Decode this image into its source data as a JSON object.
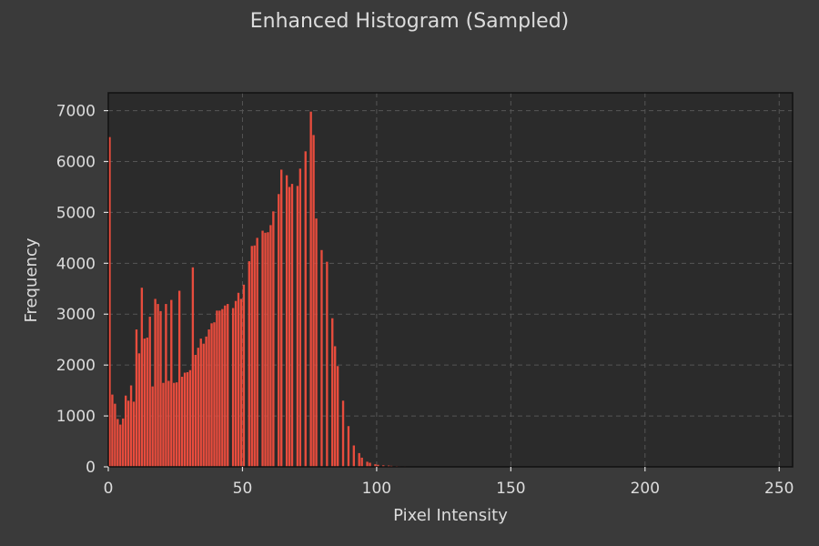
{
  "chart_data": {
    "type": "bar",
    "title": "Enhanced Histogram (Sampled)",
    "xlabel": "Pixel Intensity",
    "ylabel": "Frequency",
    "xlim": [
      0,
      255
    ],
    "ylim": [
      0,
      7350
    ],
    "xticks": [
      0,
      50,
      100,
      150,
      200,
      250
    ],
    "yticks": [
      0,
      1000,
      2000,
      3000,
      4000,
      5000,
      6000,
      7000
    ],
    "grid": true,
    "colors": {
      "background": "#3a3a3a",
      "plot_background": "#2b2b2b",
      "bar": "#e84c3d",
      "text": "#dcdcdc",
      "grid": "#555555"
    },
    "x": [
      0,
      1,
      2,
      3,
      4,
      5,
      6,
      7,
      8,
      9,
      10,
      11,
      12,
      13,
      14,
      15,
      16,
      17,
      18,
      19,
      20,
      21,
      22,
      23,
      24,
      25,
      26,
      27,
      28,
      29,
      30,
      31,
      32,
      33,
      34,
      35,
      36,
      37,
      38,
      39,
      40,
      41,
      42,
      43,
      44,
      45,
      46,
      47,
      48,
      49,
      50,
      51,
      52,
      53,
      54,
      55,
      56,
      57,
      58,
      59,
      60,
      61,
      62,
      63,
      64,
      65,
      66,
      67,
      68,
      69,
      70,
      71,
      72,
      73,
      74,
      75,
      76,
      77,
      78,
      79,
      80,
      81,
      82,
      83,
      84,
      85,
      86,
      87,
      88,
      89,
      90,
      91,
      92,
      93,
      94,
      95,
      96,
      97,
      98,
      99,
      100,
      101,
      102,
      103,
      104,
      105,
      106,
      107,
      108,
      109,
      110,
      111,
      112,
      113,
      114,
      115,
      116,
      117,
      118,
      119,
      120
    ],
    "values": [
      6480,
      1420,
      1240,
      940,
      830,
      950,
      1400,
      1300,
      1600,
      1280,
      2700,
      2230,
      3520,
      2520,
      2540,
      2950,
      1580,
      3300,
      3200,
      3060,
      1650,
      3200,
      1690,
      3280,
      1650,
      1660,
      3460,
      1770,
      1850,
      1860,
      1900,
      3920,
      2200,
      2340,
      2520,
      2420,
      2560,
      2700,
      2820,
      2840,
      3070,
      3070,
      3100,
      3170,
      3200,
      0,
      3120,
      3260,
      3420,
      3300,
      3580,
      0,
      4040,
      4340,
      4350,
      4500,
      0,
      4640,
      4600,
      4610,
      4750,
      5020,
      0,
      5360,
      5840,
      0,
      5730,
      5500,
      5560,
      0,
      5520,
      5860,
      0,
      6200,
      0,
      6980,
      6520,
      4880,
      0,
      4260,
      0,
      4030,
      0,
      2920,
      2370,
      1980,
      0,
      1300,
      0,
      800,
      0,
      420,
      0,
      270,
      180,
      0,
      100,
      80,
      0,
      50,
      40,
      0,
      30,
      0,
      25,
      20,
      0,
      15,
      10,
      0,
      10,
      8,
      0,
      5,
      0,
      3,
      0,
      2,
      0,
      1,
      0
    ]
  }
}
